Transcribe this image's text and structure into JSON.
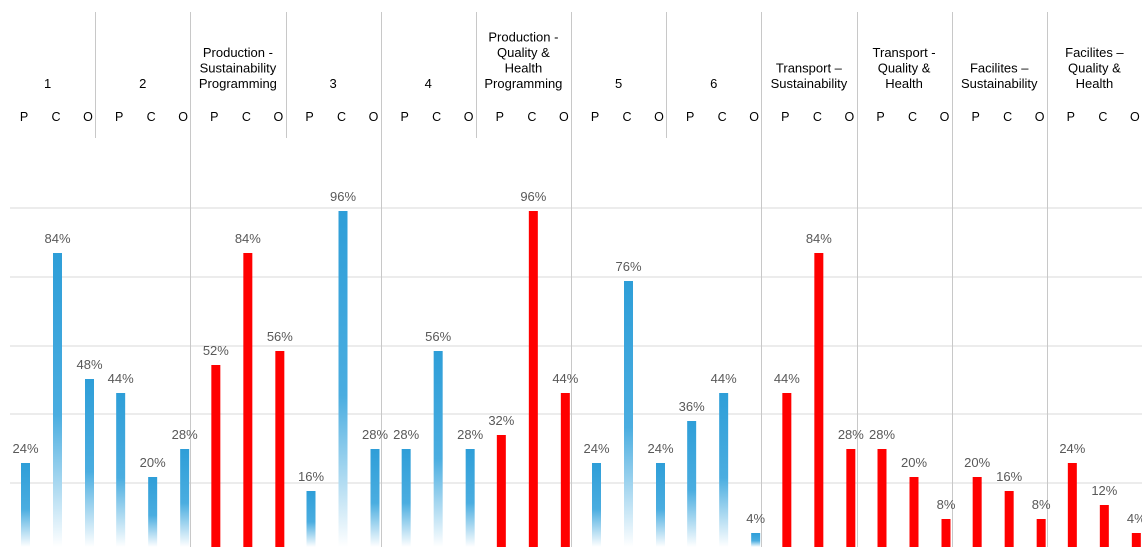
{
  "chart_data": {
    "type": "bar",
    "ylim": [
      0,
      100
    ],
    "grid": true,
    "subcategory_labels": [
      "P",
      "C",
      "O"
    ],
    "colors": {
      "blue": "#2E9ED8",
      "red": "#FF0000",
      "value_label": "#595959",
      "grid": "#D9D9D9"
    },
    "groups": [
      {
        "title": [
          "1"
        ],
        "color": "blue",
        "values": [
          24,
          84,
          48
        ]
      },
      {
        "title": [
          "2"
        ],
        "color": "blue",
        "values": [
          44,
          20,
          28
        ]
      },
      {
        "title": [
          "Production -",
          "Sustainability",
          "Programming"
        ],
        "color": "red",
        "values": [
          52,
          84,
          56
        ]
      },
      {
        "title": [
          "3"
        ],
        "color": "blue",
        "values": [
          16,
          96,
          28
        ]
      },
      {
        "title": [
          "4"
        ],
        "color": "blue",
        "values": [
          28,
          56,
          28
        ]
      },
      {
        "title": [
          "Production -",
          "Quality &",
          "Health",
          "Programming"
        ],
        "color": "red",
        "values": [
          32,
          96,
          44
        ]
      },
      {
        "title": [
          "5"
        ],
        "color": "blue",
        "values": [
          24,
          76,
          24
        ]
      },
      {
        "title": [
          "6"
        ],
        "color": "blue",
        "values": [
          36,
          44,
          4
        ]
      },
      {
        "title": [
          "Transport –",
          "Sustainability"
        ],
        "color": "red",
        "values": [
          44,
          84,
          28
        ]
      },
      {
        "title": [
          "Transport -",
          "Quality &",
          "Health"
        ],
        "color": "red",
        "values": [
          28,
          20,
          8
        ]
      },
      {
        "title": [
          "Facilites –",
          "Sustainability"
        ],
        "color": "red",
        "values": [
          20,
          16,
          8
        ]
      },
      {
        "title": [
          "Facilites –",
          "Quality &",
          "Health"
        ],
        "color": "red",
        "values": [
          24,
          12,
          4
        ]
      }
    ]
  }
}
